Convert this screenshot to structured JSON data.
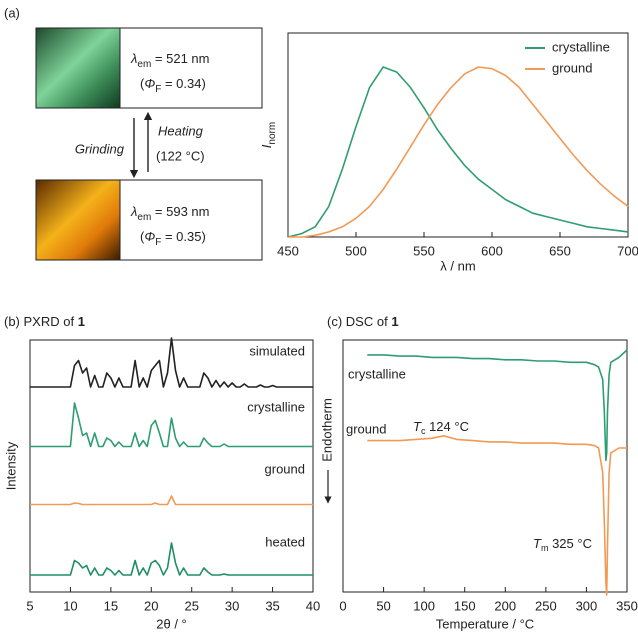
{
  "scheme": {
    "label": "(a)",
    "states": [
      {
        "symbol": "λ",
        "sub": "em",
        "text": " = 521 nm",
        "phi_open": "(",
        "phi": "Φ",
        "phi_sub": "F",
        "phi_text": " = 0.34)"
      },
      {
        "symbol": "λ",
        "sub": "em",
        "text": " = 593 nm",
        "phi_open": "(",
        "phi": "Φ",
        "phi_sub": "F",
        "phi_text": " = 0.35)"
      }
    ],
    "grinding": "Grinding",
    "heating": "Heating",
    "heating_temp": "(122 °C)"
  },
  "chart_data": [
    {
      "type": "line",
      "ylabel_symbol": "I",
      "ylabel_sub": "norm",
      "xlabel": "λ / nm",
      "xlim": [
        450,
        700
      ],
      "xticks": [
        450,
        500,
        550,
        600,
        650,
        700
      ],
      "x": [
        450,
        460,
        470,
        480,
        490,
        500,
        510,
        520,
        530,
        540,
        550,
        560,
        570,
        580,
        590,
        600,
        610,
        620,
        630,
        640,
        650,
        660,
        670,
        680,
        690,
        700
      ],
      "legend": "upper right",
      "series": [
        {
          "name": "crystalline",
          "color": "#2e9e72",
          "values": [
            0.0,
            0.02,
            0.06,
            0.18,
            0.4,
            0.65,
            0.88,
            1.0,
            0.97,
            0.88,
            0.76,
            0.63,
            0.52,
            0.42,
            0.34,
            0.28,
            0.22,
            0.18,
            0.14,
            0.12,
            0.1,
            0.08,
            0.06,
            0.05,
            0.04,
            0.03
          ]
        },
        {
          "name": "ground",
          "color": "#f29a55",
          "values": [
            0.0,
            0.0,
            0.01,
            0.03,
            0.06,
            0.11,
            0.18,
            0.28,
            0.4,
            0.53,
            0.66,
            0.78,
            0.88,
            0.96,
            1.0,
            0.99,
            0.95,
            0.88,
            0.78,
            0.68,
            0.58,
            0.48,
            0.39,
            0.31,
            0.24,
            0.18
          ]
        }
      ]
    },
    {
      "type": "stacked-line",
      "label": "(b)",
      "title": "PXRD of",
      "title_bold": "1",
      "ylabel": "Intensity",
      "xlabel": "2θ / °",
      "xlim": [
        5,
        40
      ],
      "xticks": [
        5,
        10,
        15,
        20,
        25,
        30,
        35,
        40
      ],
      "x": [
        5,
        5.5,
        6,
        6.5,
        7,
        7.5,
        8,
        8.5,
        9,
        9.5,
        10,
        10.5,
        11,
        11.5,
        12,
        12.5,
        13,
        13.5,
        14,
        14.5,
        15,
        15.5,
        16,
        16.5,
        17,
        17.5,
        18,
        18.5,
        19,
        19.5,
        20,
        20.5,
        21,
        21.5,
        22,
        22.5,
        23,
        23.5,
        24,
        24.5,
        25,
        25.5,
        26,
        26.5,
        27,
        27.5,
        28,
        28.5,
        29,
        29.5,
        30,
        30.5,
        31,
        31.5,
        32,
        32.5,
        33,
        33.5,
        34,
        34.5,
        35,
        35.5,
        36,
        36.5,
        37,
        37.5,
        38,
        38.5,
        39,
        39.5,
        40
      ],
      "series": [
        {
          "name": "simulated",
          "color": "#222222",
          "values": [
            0.02,
            0.02,
            0.02,
            0.02,
            0.02,
            0.02,
            0.02,
            0.02,
            0.02,
            0.02,
            0.02,
            0.45,
            0.55,
            0.3,
            0.4,
            0.02,
            0.25,
            0.02,
            0.02,
            0.3,
            0.2,
            0.02,
            0.2,
            0.02,
            0.02,
            0.02,
            0.55,
            0.02,
            0.2,
            0.02,
            0.35,
            0.45,
            0.55,
            0.02,
            0.3,
            1.0,
            0.35,
            0.02,
            0.2,
            0.02,
            0.02,
            0.02,
            0.02,
            0.3,
            0.2,
            0.02,
            0.15,
            0.02,
            0.12,
            0.02,
            0.1,
            0.02,
            0.02,
            0.08,
            0.02,
            0.02,
            0.02,
            0.06,
            0.02,
            0.02,
            0.05,
            0.02,
            0.02,
            0.02,
            0.02,
            0.02,
            0.02,
            0.02,
            0.02,
            0.02,
            0.02
          ]
        },
        {
          "name": "crystalline",
          "color": "#2e9e72",
          "values": [
            0.03,
            0.03,
            0.03,
            0.03,
            0.03,
            0.03,
            0.03,
            0.03,
            0.03,
            0.03,
            0.03,
            0.9,
            0.6,
            0.25,
            0.3,
            0.03,
            0.3,
            0.03,
            0.03,
            0.2,
            0.15,
            0.03,
            0.12,
            0.03,
            0.03,
            0.03,
            0.3,
            0.03,
            0.15,
            0.03,
            0.45,
            0.55,
            0.3,
            0.03,
            0.03,
            0.6,
            0.2,
            0.03,
            0.12,
            0.03,
            0.03,
            0.03,
            0.03,
            0.2,
            0.1,
            0.03,
            0.03,
            0.03,
            0.08,
            0.03,
            0.03,
            0.03,
            0.03,
            0.03,
            0.03,
            0.03,
            0.03,
            0.03,
            0.03,
            0.03,
            0.03,
            0.03,
            0.03,
            0.03,
            0.03,
            0.03,
            0.03,
            0.03,
            0.03,
            0.03,
            0.03
          ]
        },
        {
          "name": "ground",
          "color": "#f29a55",
          "values": [
            0.03,
            0.03,
            0.03,
            0.03,
            0.03,
            0.03,
            0.03,
            0.03,
            0.03,
            0.03,
            0.03,
            0.06,
            0.05,
            0.03,
            0.03,
            0.03,
            0.03,
            0.03,
            0.03,
            0.03,
            0.03,
            0.03,
            0.03,
            0.03,
            0.03,
            0.03,
            0.03,
            0.03,
            0.03,
            0.03,
            0.03,
            0.06,
            0.03,
            0.03,
            0.03,
            0.2,
            0.03,
            0.03,
            0.03,
            0.03,
            0.03,
            0.03,
            0.03,
            0.03,
            0.03,
            0.03,
            0.03,
            0.03,
            0.03,
            0.03,
            0.03,
            0.03,
            0.03,
            0.03,
            0.03,
            0.03,
            0.03,
            0.03,
            0.03,
            0.03,
            0.03,
            0.03,
            0.03,
            0.03,
            0.03,
            0.03,
            0.03,
            0.03,
            0.03,
            0.03,
            0.03
          ]
        },
        {
          "name": "heated",
          "color": "#1f8f60",
          "values": [
            0.06,
            0.06,
            0.06,
            0.06,
            0.06,
            0.06,
            0.06,
            0.06,
            0.06,
            0.06,
            0.06,
            0.35,
            0.3,
            0.2,
            0.25,
            0.06,
            0.2,
            0.06,
            0.06,
            0.2,
            0.15,
            0.06,
            0.15,
            0.06,
            0.06,
            0.06,
            0.35,
            0.06,
            0.2,
            0.06,
            0.3,
            0.35,
            0.25,
            0.06,
            0.2,
            0.7,
            0.3,
            0.06,
            0.2,
            0.06,
            0.06,
            0.06,
            0.06,
            0.2,
            0.12,
            0.06,
            0.06,
            0.06,
            0.08,
            0.06,
            0.06,
            0.06,
            0.06,
            0.06,
            0.06,
            0.06,
            0.06,
            0.06,
            0.06,
            0.06,
            0.06,
            0.06,
            0.06,
            0.06,
            0.06,
            0.06,
            0.06,
            0.06,
            0.06,
            0.06,
            0.06
          ]
        }
      ]
    },
    {
      "type": "line",
      "label": "(c)",
      "title": "DSC of",
      "title_bold": "1",
      "ylabel": "Endotherm",
      "xlabel": "Temperature / °C",
      "xlim": [
        0,
        350
      ],
      "xticks": [
        0,
        50,
        100,
        150,
        200,
        250,
        300,
        350
      ],
      "x": [
        30,
        50,
        70,
        90,
        110,
        124,
        140,
        160,
        180,
        200,
        220,
        240,
        260,
        280,
        300,
        310,
        315,
        320,
        322,
        324,
        325,
        326,
        328,
        330,
        340,
        350
      ],
      "series": [
        {
          "name": "crystalline",
          "color": "#2e9e72",
          "values": [
            0.98,
            0.98,
            0.975,
            0.975,
            0.97,
            0.97,
            0.97,
            0.965,
            0.965,
            0.96,
            0.96,
            0.955,
            0.955,
            0.95,
            0.95,
            0.94,
            0.93,
            0.88,
            0.75,
            0.55,
            0.58,
            0.75,
            0.9,
            0.95,
            0.97,
            1.0
          ]
        },
        {
          "name": "ground",
          "color": "#f29a55",
          "values": [
            0.63,
            0.63,
            0.63,
            0.635,
            0.64,
            0.65,
            0.635,
            0.63,
            0.625,
            0.625,
            0.62,
            0.62,
            0.62,
            0.615,
            0.615,
            0.61,
            0.6,
            0.5,
            0.3,
            0.05,
            0.0,
            0.2,
            0.5,
            0.58,
            0.6,
            0.6
          ]
        }
      ],
      "annotations": [
        {
          "symbol": "T",
          "sub": "c",
          "text": " 124 °C"
        },
        {
          "symbol": "T",
          "sub": "m",
          "text": " 325 °C"
        }
      ]
    }
  ]
}
